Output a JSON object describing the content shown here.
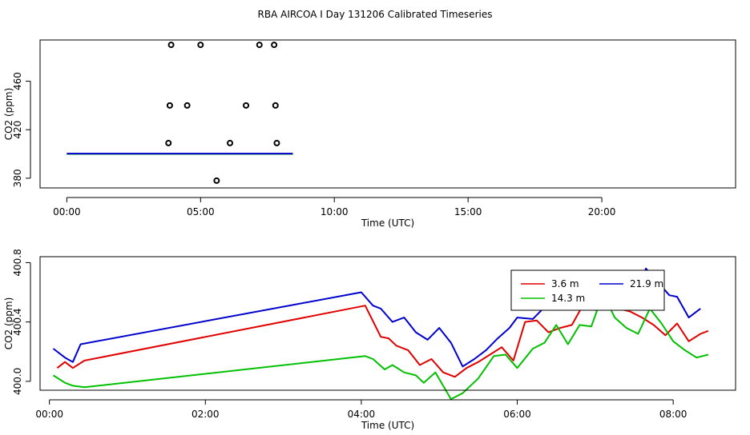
{
  "page": {
    "title": "RBA AIRCOA I  Day 131206  Calibrated Timeseries"
  },
  "chart_data": [
    {
      "type": "scatter",
      "xlabel": "Time (UTC)",
      "ylabel": "CO2 (ppm)",
      "xlim": [
        -1.0,
        25.0
      ],
      "ylim": [
        372.0,
        494.0
      ],
      "x_ticks": [
        0,
        5,
        10,
        15,
        20
      ],
      "x_tick_labels": [
        "00:00",
        "05:00",
        "10:00",
        "15:00",
        "20:00"
      ],
      "y_ticks": [
        380,
        420,
        460
      ],
      "y_tick_labels": [
        "380",
        "420",
        "460"
      ],
      "grid": false,
      "points": [
        {
          "x": 3.8,
          "y": 409
        },
        {
          "x": 3.85,
          "y": 440
        },
        {
          "x": 3.9,
          "y": 490
        },
        {
          "x": 4.5,
          "y": 440
        },
        {
          "x": 5.0,
          "y": 490
        },
        {
          "x": 5.6,
          "y": 378
        },
        {
          "x": 6.1,
          "y": 409
        },
        {
          "x": 6.7,
          "y": 440
        },
        {
          "x": 7.2,
          "y": 490
        },
        {
          "x": 7.75,
          "y": 490
        },
        {
          "x": 7.8,
          "y": 440
        },
        {
          "x": 7.85,
          "y": 409
        }
      ],
      "series": [
        {
          "name": "3.6 m",
          "color": "#e00000",
          "x": [
            0.0,
            8.45
          ],
          "y": [
            400.1,
            400.1
          ]
        },
        {
          "name": "14.3 m",
          "color": "#00c000",
          "x": [
            0.0,
            8.45
          ],
          "y": [
            400.0,
            400.0
          ]
        },
        {
          "name": "21.9 m",
          "color": "#0000cc",
          "x": [
            0.0,
            8.45
          ],
          "y": [
            400.3,
            400.3
          ]
        }
      ]
    },
    {
      "type": "line",
      "xlabel": "Time (UTC)",
      "ylabel": "CO2 (ppm)",
      "xlim": [
        -0.12,
        8.8
      ],
      "ylim": [
        399.94,
        400.84
      ],
      "x_ticks": [
        0,
        2,
        4,
        6,
        8
      ],
      "x_tick_labels": [
        "00:00",
        "02:00",
        "04:00",
        "06:00",
        "08:00"
      ],
      "y_ticks": [
        400.0,
        400.4,
        400.8
      ],
      "y_tick_labels": [
        "400.0",
        "400.4",
        "400.8"
      ],
      "grid": false,
      "legend_position": "top-right",
      "series": [
        {
          "name": "3.6 m",
          "color": "#e00000",
          "x": [
            0.1,
            0.2,
            0.3,
            0.45,
            4.05,
            4.25,
            4.35,
            4.45,
            4.6,
            4.75,
            4.9,
            5.05,
            5.2,
            5.35,
            5.5,
            5.65,
            5.8,
            5.95,
            6.1,
            6.25,
            6.4,
            6.55,
            6.7,
            6.85,
            7.0,
            7.15,
            7.3,
            7.45,
            7.6,
            7.75,
            7.9,
            8.05,
            8.2,
            8.35,
            8.45
          ],
          "y": [
            400.09,
            400.13,
            400.09,
            400.14,
            400.51,
            400.3,
            400.29,
            400.24,
            400.21,
            400.11,
            400.15,
            400.06,
            400.03,
            400.09,
            400.13,
            400.18,
            400.23,
            400.14,
            400.4,
            400.41,
            400.33,
            400.36,
            400.38,
            400.52,
            400.48,
            400.58,
            400.49,
            400.47,
            400.43,
            400.38,
            400.31,
            400.39,
            400.27,
            400.32,
            400.34
          ]
        },
        {
          "name": "14.3 m",
          "color": "#00c000",
          "x": [
            0.05,
            0.2,
            0.3,
            0.45,
            4.05,
            4.15,
            4.3,
            4.4,
            4.55,
            4.7,
            4.8,
            4.95,
            5.15,
            5.3,
            5.5,
            5.7,
            5.85,
            6.0,
            6.2,
            6.35,
            6.5,
            6.65,
            6.8,
            6.95,
            7.1,
            7.25,
            7.4,
            7.55,
            7.7,
            7.85,
            8.0,
            8.15,
            8.3,
            8.45
          ],
          "y": [
            400.04,
            399.99,
            399.97,
            399.96,
            400.17,
            400.15,
            400.08,
            400.11,
            400.06,
            400.04,
            399.99,
            400.06,
            399.88,
            399.92,
            400.02,
            400.17,
            400.18,
            400.09,
            400.22,
            400.26,
            400.38,
            400.25,
            400.38,
            400.37,
            400.59,
            400.43,
            400.36,
            400.32,
            400.49,
            400.39,
            400.27,
            400.21,
            400.16,
            400.18
          ]
        },
        {
          "name": "21.9 m",
          "color": "#0000cc",
          "x": [
            0.05,
            0.2,
            0.3,
            0.4,
            4.0,
            4.15,
            4.25,
            4.4,
            4.55,
            4.7,
            4.85,
            5.0,
            5.15,
            5.3,
            5.45,
            5.6,
            5.75,
            5.9,
            6.0,
            6.2,
            6.35,
            6.5,
            6.7,
            6.85,
            7.0,
            7.15,
            7.3,
            7.4,
            7.55,
            7.65,
            7.8,
            7.95,
            8.05,
            8.2,
            8.35
          ],
          "y": [
            400.22,
            400.16,
            400.13,
            400.25,
            400.6,
            400.51,
            400.49,
            400.4,
            400.43,
            400.33,
            400.28,
            400.36,
            400.26,
            400.1,
            400.15,
            400.21,
            400.29,
            400.36,
            400.43,
            400.42,
            400.5,
            400.56,
            400.66,
            400.51,
            400.61,
            400.64,
            400.73,
            400.63,
            400.6,
            400.76,
            400.67,
            400.58,
            400.57,
            400.43,
            400.49
          ]
        }
      ]
    }
  ]
}
